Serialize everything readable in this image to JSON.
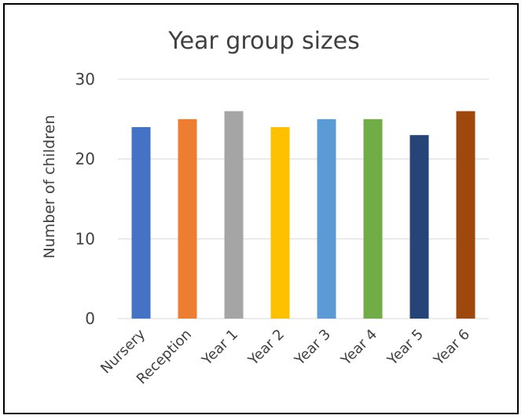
{
  "chart_data": {
    "type": "bar",
    "title": "Year group sizes",
    "xlabel": "",
    "ylabel": "Number of children",
    "categories": [
      "Nursery",
      "Reception",
      "Year 1",
      "Year 2",
      "Year 3",
      "Year 4",
      "Year 5",
      "Year 6"
    ],
    "values": [
      24,
      25,
      26,
      24,
      25,
      25,
      23,
      26
    ],
    "colors": [
      "#4472c4",
      "#ed7d31",
      "#a5a5a5",
      "#ffc000",
      "#5b9bd5",
      "#70ad47",
      "#264478",
      "#9e480e"
    ],
    "ylim": [
      0,
      30
    ],
    "yticks": [
      0,
      10,
      20,
      30
    ],
    "grid": true,
    "legend": "none"
  }
}
